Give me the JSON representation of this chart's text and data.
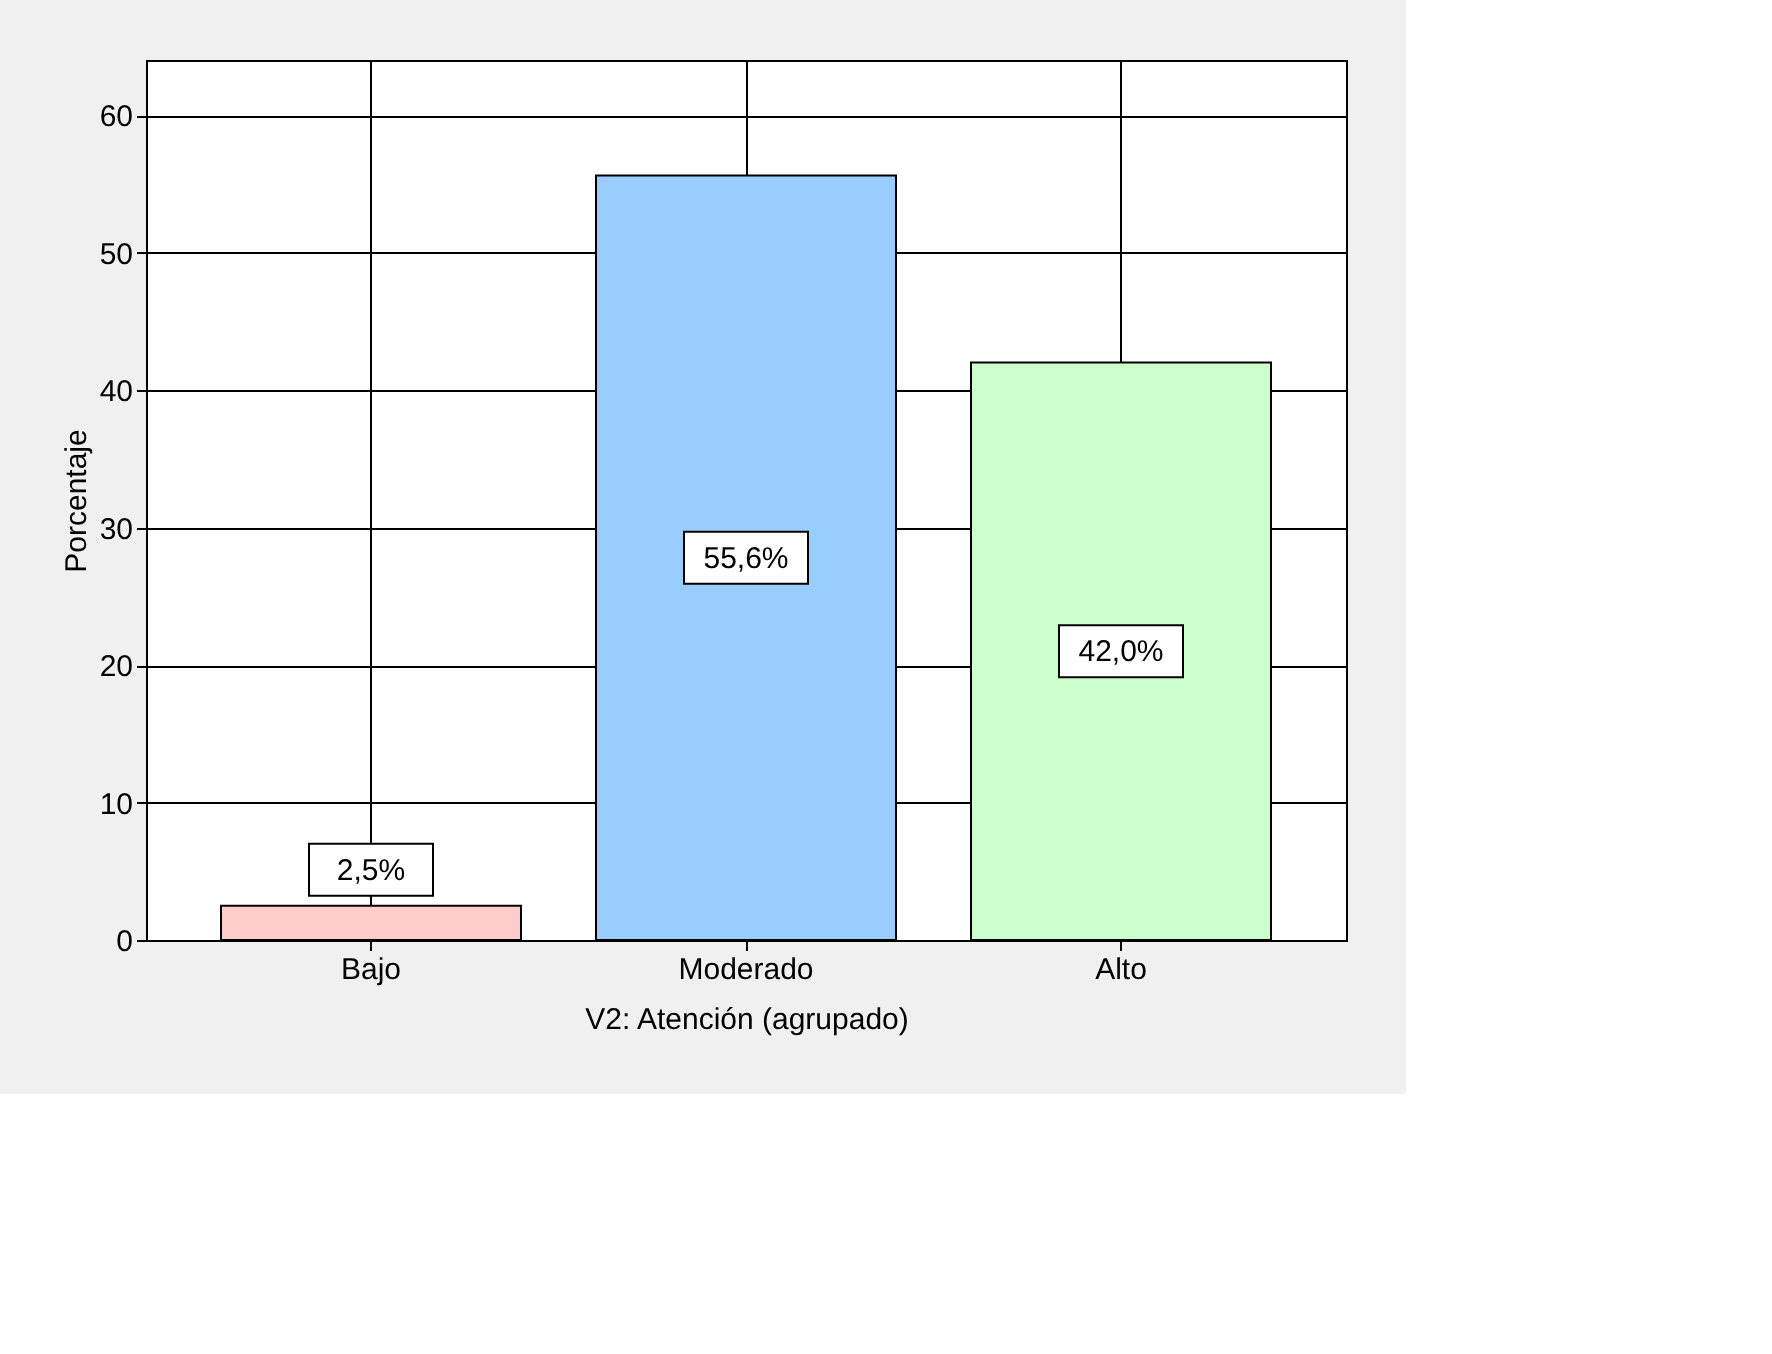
{
  "chart_data": {
    "type": "bar",
    "xlabel": "V2: Atención (agrupado)",
    "ylabel": "Porcentaje",
    "categories": [
      "Bajo",
      "Moderado",
      "Alto"
    ],
    "values": [
      2.5,
      55.6,
      42.0
    ],
    "colors": [
      "#ffcccc",
      "#99ccff",
      "#ccffcc"
    ],
    "value_labels": [
      "2,5%",
      "55,6%",
      "42,0%"
    ],
    "ylim": [
      0,
      64
    ],
    "yticks": [
      0,
      10,
      20,
      30,
      40,
      50,
      60
    ],
    "grid": true
  }
}
